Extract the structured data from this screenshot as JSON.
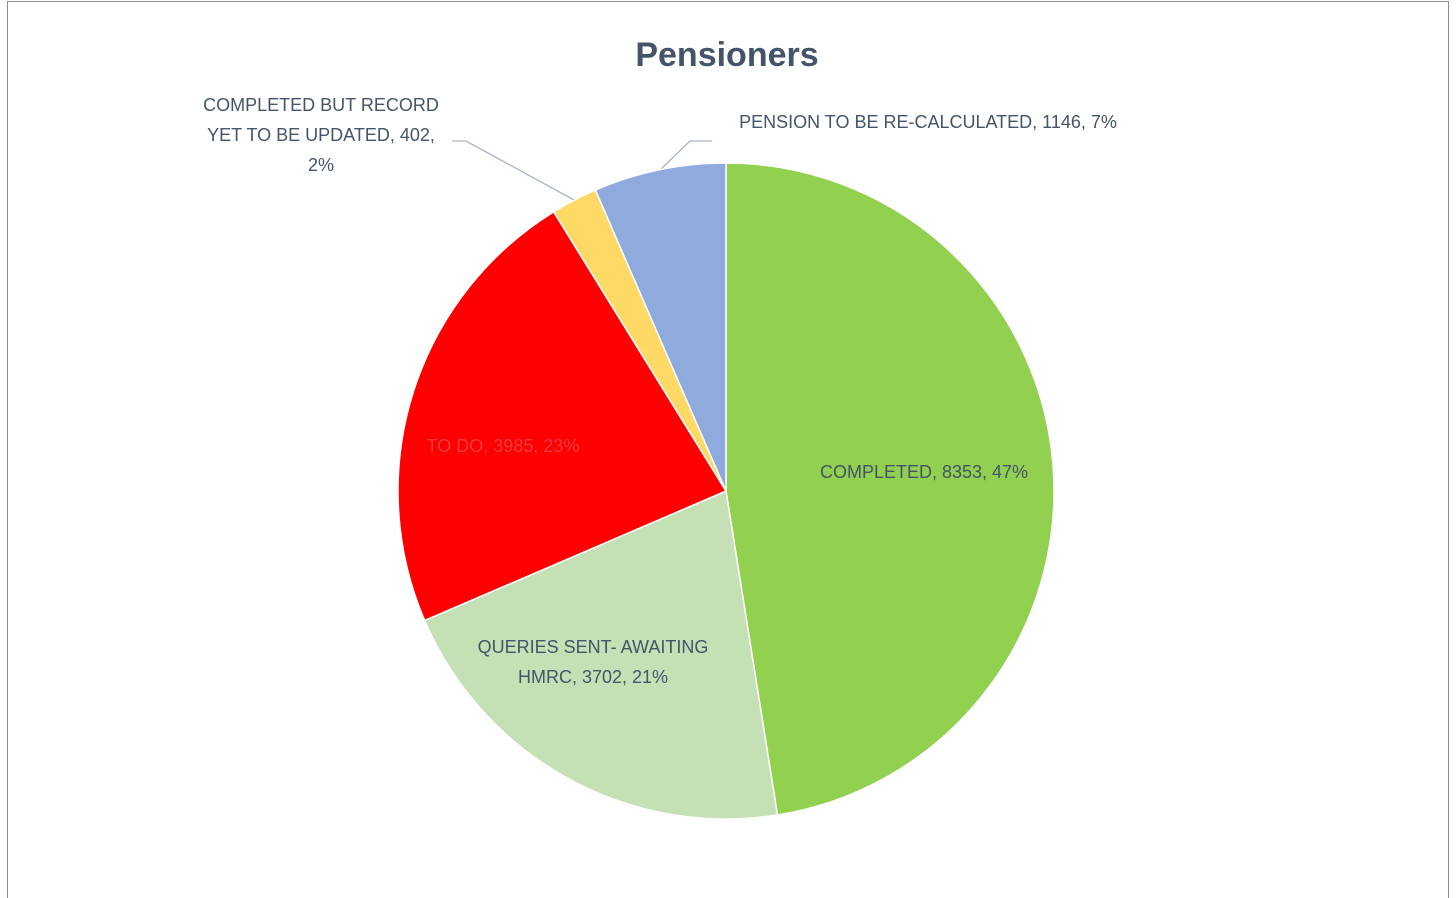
{
  "chart_data": {
    "type": "pie",
    "title": "Pensioners",
    "values": [
      8353,
      3702,
      3985,
      402,
      1146
    ],
    "colors": [
      "#92d050",
      "#c5e0b4",
      "#ff0000",
      "#ffd966",
      "#8faadc"
    ],
    "data_labels": [
      [
        "COMPLETED, 8353, 47%"
      ],
      [
        "QUERIES SENT- AWAITING",
        "HMRC, 3702, 21%"
      ],
      [
        "TO DO, 3985, 23%"
      ],
      [
        "COMPLETED BUT RECORD",
        "YET TO BE UPDATED, 402,",
        "2%"
      ],
      [
        "PENSION TO BE RE-CALCULATED, 1146, 7%"
      ]
    ]
  }
}
